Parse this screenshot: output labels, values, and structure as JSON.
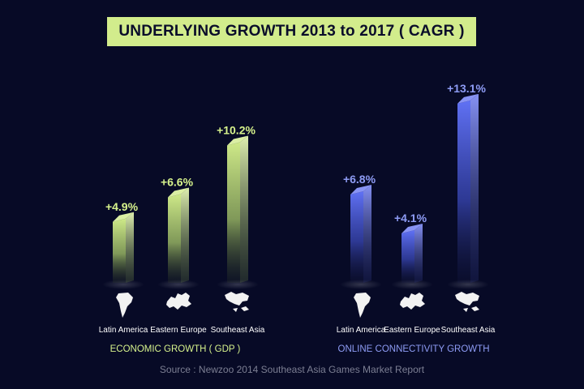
{
  "title": "UNDERLYING GROWTH 2013 to 2017 ( CAGR )",
  "source": "Source : Newzoo 2014 Southeast Asia Games Market Report",
  "colors": {
    "background": "#070a26",
    "title_bg": "#d2ec8c",
    "gdp": "#d6f28c",
    "connectivity": "#5b6cf2",
    "map": "#f2f2f2",
    "source": "#7c7f93"
  },
  "chart_data": [
    {
      "type": "bar",
      "title": "ECONOMIC GROWTH ( GDP )",
      "categories": [
        "Latin America",
        "Eastern Europe",
        "Southeast Asia"
      ],
      "category_icons": [
        "south-america-map-icon",
        "europe-map-icon",
        "southeast-asia-map-icon"
      ],
      "series": [
        {
          "values": [
            4.9,
            6.6,
            10.2
          ],
          "labels": [
            "+4.9%",
            "+6.6%",
            "+10.2%"
          ]
        }
      ],
      "unit": "%",
      "ylim": [
        0,
        14
      ],
      "grid": false,
      "legend": "none"
    },
    {
      "type": "bar",
      "title": "ONLINE CONNECTIVITY GROWTH",
      "categories": [
        "Latin America",
        "Eastern Europe",
        "Southeast Asia"
      ],
      "category_icons": [
        "south-america-map-icon",
        "europe-map-icon",
        "southeast-asia-map-icon"
      ],
      "series": [
        {
          "values": [
            6.8,
            4.1,
            13.1
          ],
          "labels": [
            "+6.8%",
            "+4.1%",
            "+13.1%"
          ]
        }
      ],
      "unit": "%",
      "ylim": [
        0,
        14
      ],
      "grid": false,
      "legend": "none"
    }
  ]
}
